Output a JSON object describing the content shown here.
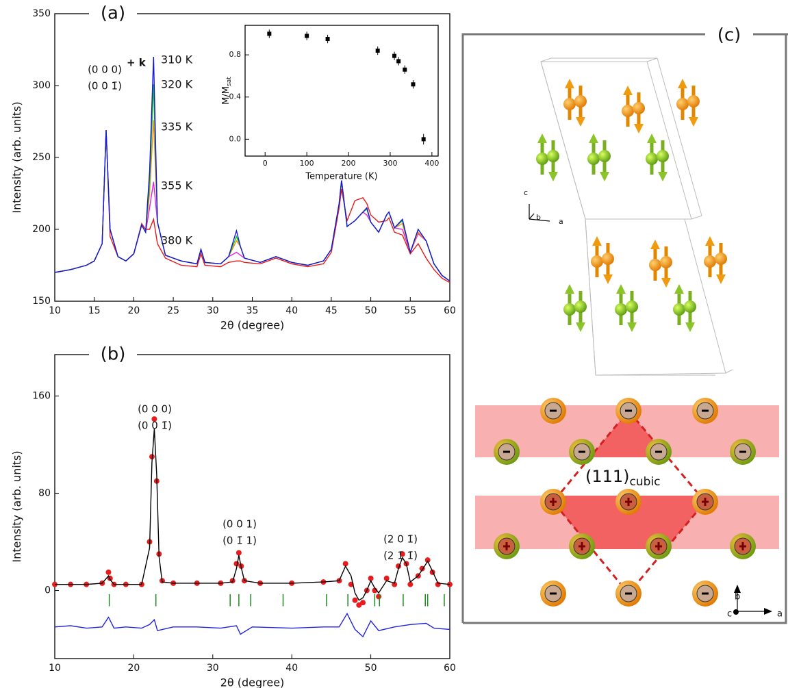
{
  "chart_data": [
    {
      "type": "line",
      "label": "(a)",
      "xlabel": "2θ (degree)",
      "ylabel": "Intensity (arb. units)",
      "xlim": [
        10,
        60
      ],
      "ylim": [
        150,
        350
      ],
      "xticks": [
        10,
        15,
        20,
        25,
        30,
        35,
        40,
        45,
        50,
        55,
        60
      ],
      "yticks": [
        150,
        200,
        250,
        300,
        350
      ],
      "annotations": [
        "(0 0 0)",
        "(0 0 1̄)",
        "+ k"
      ],
      "x": [
        10,
        12,
        14,
        15,
        16,
        16.5,
        17,
        18,
        19,
        20,
        21,
        21.5,
        22,
        22.5,
        23,
        24,
        26,
        28,
        28.5,
        29,
        31,
        32,
        33,
        33.5,
        34,
        36,
        38,
        40,
        42,
        44,
        45,
        46,
        46.3,
        47,
        48,
        49,
        49.5,
        50,
        51,
        52,
        52.3,
        53,
        54,
        55,
        56,
        57,
        58,
        59,
        60
      ],
      "series": [
        {
          "name": "380 K",
          "color": "#e81818",
          "values": [
            170,
            172,
            175,
            178,
            190,
            269,
            195,
            181,
            178,
            183,
            204,
            200,
            200,
            207,
            190,
            180,
            175,
            174,
            183,
            175,
            174,
            177,
            178,
            178,
            177,
            176,
            180,
            176,
            174,
            176,
            184,
            215,
            228,
            206,
            220,
            222,
            218,
            210,
            205,
            206,
            208,
            198,
            196,
            183,
            190,
            180,
            172,
            166,
            163
          ]
        },
        {
          "name": "355 K",
          "color": "#e020e0",
          "values": [
            170,
            172,
            175,
            178,
            190,
            269,
            200,
            181,
            178,
            183,
            203,
            198,
            215,
            233,
            205,
            182,
            178,
            176,
            186,
            177,
            176,
            181,
            184,
            182,
            180,
            177,
            181,
            177,
            175,
            178,
            186,
            218,
            234,
            202,
            206,
            212,
            210,
            205,
            198,
            210,
            212,
            201,
            200,
            184,
            197,
            192,
            176,
            168,
            164
          ]
        },
        {
          "name": "335 K",
          "color": "#ff8c1a",
          "values": [
            170,
            172,
            175,
            178,
            190,
            269,
            200,
            181,
            178,
            183,
            203,
            198,
            225,
            276,
            205,
            182,
            178,
            176,
            186,
            177,
            176,
            181,
            192,
            188,
            180,
            177,
            181,
            177,
            175,
            178,
            186,
            218,
            234,
            202,
            206,
            212,
            215,
            205,
            198,
            210,
            212,
            201,
            204,
            184,
            198,
            192,
            176,
            168,
            164
          ]
        },
        {
          "name": "320 K",
          "color": "#10c810",
          "values": [
            170,
            172,
            175,
            178,
            190,
            269,
            200,
            181,
            178,
            183,
            203,
            198,
            232,
            301,
            205,
            182,
            178,
            176,
            186,
            177,
            176,
            181,
            195,
            188,
            180,
            177,
            181,
            177,
            175,
            178,
            186,
            218,
            234,
            202,
            206,
            212,
            214,
            205,
            198,
            210,
            212,
            201,
            206,
            184,
            200,
            192,
            176,
            168,
            164
          ]
        },
        {
          "name": "310 K",
          "color": "#1515e0",
          "values": [
            170,
            172,
            175,
            178,
            190,
            269,
            200,
            181,
            178,
            183,
            203,
            198,
            240,
            320,
            205,
            182,
            178,
            176,
            186,
            177,
            176,
            181,
            199,
            188,
            180,
            177,
            181,
            177,
            175,
            178,
            186,
            218,
            234,
            202,
            206,
            212,
            215,
            205,
            198,
            210,
            212,
            201,
            207,
            184,
            200,
            192,
            176,
            168,
            164
          ]
        }
      ]
    },
    {
      "type": "scatter",
      "xlabel": "Temperature (K)",
      "ylabel": "M/M",
      "ylabel_subscript": "sat",
      "xlim": [
        -48,
        415
      ],
      "ylim": [
        -0.16,
        1.08
      ],
      "xticks": [
        0,
        100,
        200,
        300,
        400
      ],
      "yticks": [
        {
          "value": 0,
          "label": "0.0"
        },
        0.4,
        0.8
      ],
      "color": "#000000",
      "x": [
        10,
        100,
        150,
        270,
        310,
        320,
        335,
        355,
        380
      ],
      "values": [
        1.0,
        0.98,
        0.95,
        0.84,
        0.79,
        0.74,
        0.66,
        0.52,
        0.0
      ],
      "errors": [
        0.04,
        0.04,
        0.04,
        0.04,
        0.04,
        0.04,
        0.04,
        0.04,
        0.05
      ]
    },
    {
      "type": "line",
      "label": "(b)",
      "xlabel": "2θ (degree)",
      "ylabel": "Intensity (arb. units)",
      "xlim": [
        10,
        60
      ],
      "ylim": [
        -56,
        194
      ],
      "xticks": [
        10,
        20,
        30,
        40,
        50,
        60
      ],
      "yticks": [
        0,
        80,
        160
      ],
      "annotations": [
        "(0 0 0)",
        "(0 0 1̄)",
        "(0 0 1)",
        "(0 1̄ 1)",
        "(2 0 1̄)",
        "(2 1̄ 1̄)"
      ],
      "series": [
        {
          "color": "#e81c1c",
          "marker": "circle",
          "x": [
            10,
            12,
            14,
            16,
            16.8,
            17,
            17.5,
            19,
            21,
            22,
            22.3,
            22.6,
            22.9,
            23.2,
            23.6,
            25,
            28,
            31,
            32.5,
            33,
            33.3,
            33.6,
            34,
            36,
            40,
            44,
            46,
            46.8,
            47.5,
            48,
            48.5,
            49,
            49.5,
            50,
            50.5,
            51,
            52,
            53,
            53.5,
            54,
            54.5,
            55,
            56,
            56.5,
            57.2,
            57.8,
            58.5,
            60
          ],
          "values": [
            5,
            5,
            5,
            6,
            15,
            10,
            5,
            5,
            5,
            40,
            110,
            141,
            90,
            30,
            8,
            6,
            6,
            6,
            8,
            22,
            31,
            20,
            8,
            6,
            6,
            7,
            8,
            22,
            5,
            -8,
            -12,
            -10,
            0,
            10,
            0,
            -5,
            10,
            5,
            20,
            30,
            22,
            5,
            12,
            18,
            25,
            15,
            5,
            5
          ]
        },
        {
          "color": "#000000",
          "x": [
            10,
            12,
            14,
            16,
            16.8,
            17,
            17.5,
            19,
            21,
            22,
            22.3,
            22.6,
            22.9,
            23.2,
            23.6,
            25,
            28,
            31,
            32.5,
            33,
            33.3,
            33.6,
            34,
            36,
            40,
            44,
            46,
            46.8,
            47.5,
            48,
            48.5,
            49,
            49.5,
            50,
            50.5,
            51,
            52,
            53,
            53.5,
            54,
            54.5,
            55,
            56,
            56.5,
            57.2,
            57.8,
            58.5,
            60
          ],
          "values": [
            5,
            5,
            5,
            6,
            12,
            9,
            5,
            5,
            5,
            35,
            105,
            133,
            95,
            28,
            7,
            6,
            6,
            6,
            7,
            18,
            29,
            19,
            8,
            6,
            6,
            7,
            8,
            20,
            12,
            -2,
            -8,
            -6,
            0,
            8,
            2,
            -2,
            8,
            6,
            18,
            27,
            22,
            7,
            12,
            17,
            24,
            16,
            6,
            5
          ]
        },
        {
          "color": "#2222dd",
          "x": [
            10,
            12,
            14,
            16,
            16.8,
            17.5,
            19,
            21,
            22,
            22.6,
            23,
            25,
            28,
            31,
            33,
            33.5,
            35,
            40,
            44,
            46,
            47,
            48,
            49,
            50,
            51,
            53,
            55,
            57,
            58,
            60
          ],
          "values": [
            -30,
            -29,
            -31,
            -30,
            -22,
            -31,
            -30,
            -31,
            -28,
            -24,
            -33,
            -30,
            -30,
            -31,
            -29,
            -36,
            -30,
            -31,
            -30,
            -30,
            -19,
            -32,
            -38,
            -25,
            -33,
            -30,
            -28,
            -27,
            -31,
            -32
          ]
        }
      ],
      "reflections": {
        "color": "#1f8a1f",
        "x": [
          16.9,
          22.8,
          32.2,
          33.3,
          34.8,
          38.9,
          44.4,
          47.1,
          50.5,
          51.1,
          54.1,
          56.9,
          57.2,
          59.3
        ]
      }
    }
  ],
  "diagram": {
    "label": "(c)",
    "plane_label": "(111)",
    "plane_subscript": "cubic",
    "top_axes": [
      "c",
      "b",
      "a"
    ],
    "bottom_axes": [
      "b",
      "c",
      "a"
    ]
  }
}
